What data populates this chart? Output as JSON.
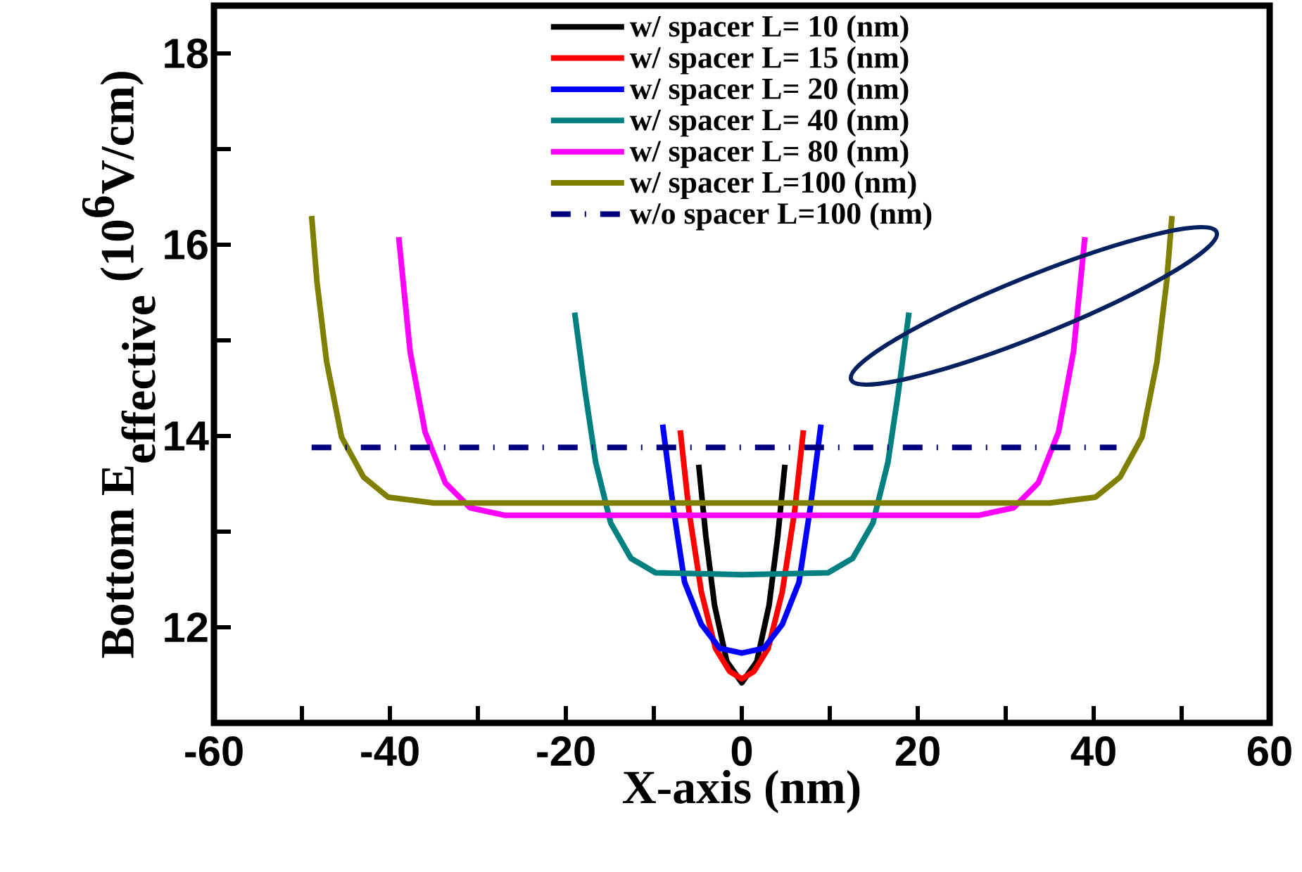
{
  "chart_data": {
    "type": "line",
    "xlabel": "X-axis (nm)",
    "ylabel": "\\textbf{Bottom E}_{\\textbf{effective}}\\textbf{ (10}^{\\textbf{6}}\\textbf{V/cm)}",
    "xlim": [
      -60,
      60
    ],
    "ylim": [
      11,
      18.5
    ],
    "xticks": [
      -60,
      {
        "value": -50,
        "label": null
      },
      -40,
      {
        "value": -30,
        "label": null
      },
      -20,
      {
        "value": -10,
        "label": null
      },
      0,
      {
        "value": 10,
        "label": null
      },
      20,
      {
        "value": 30,
        "label": null
      },
      40,
      {
        "value": 50,
        "label": null
      },
      60
    ],
    "yticks": [
      12,
      {
        "value": 13,
        "label": null
      },
      14,
      {
        "value": 15,
        "label": null
      },
      16,
      {
        "value": 17,
        "label": null
      },
      18
    ],
    "legend": "top",
    "grid": false,
    "marker": "none",
    "line_style": "solid",
    "series": [
      {
        "name": "w/ spacer L= 10 (nm)",
        "color": "#000000",
        "x": [
          -4.9,
          -4.1,
          -3.1,
          -1.7,
          0,
          1.7,
          3.1,
          4.1,
          4.9
        ],
        "values": [
          13.7,
          12.96,
          12.23,
          11.64,
          11.42,
          11.64,
          12.23,
          12.96,
          13.7
        ]
      },
      {
        "name": "w/ spacer L= 15 (nm)",
        "color": "#ff0000",
        "x": [
          -7.0,
          -6.0,
          -4.6,
          -3.0,
          -1.4,
          0,
          1.4,
          3.0,
          4.6,
          6.0,
          7.0
        ],
        "values": [
          14.06,
          13.21,
          12.37,
          11.78,
          11.54,
          11.46,
          11.54,
          11.78,
          12.37,
          13.21,
          14.06
        ]
      },
      {
        "name": "w/ spacer L= 20 (nm)",
        "color": "#0000ff",
        "x": [
          -9.0,
          -7.8,
          -6.5,
          -4.6,
          -2.5,
          0,
          2.5,
          4.6,
          6.5,
          7.8,
          9.0
        ],
        "values": [
          14.12,
          13.26,
          12.47,
          12.03,
          11.78,
          11.73,
          11.78,
          12.03,
          12.47,
          13.26,
          14.12
        ]
      },
      {
        "name": "w/ spacer L= 40 (nm)",
        "color": "#008080",
        "x": [
          -19.0,
          -17.8,
          -16.6,
          -14.9,
          -12.6,
          -9.8,
          0,
          9.8,
          12.6,
          14.9,
          16.6,
          17.8,
          19.0
        ],
        "values": [
          15.29,
          14.46,
          13.72,
          13.09,
          12.72,
          12.57,
          12.55,
          12.57,
          12.72,
          13.09,
          13.72,
          14.46,
          15.29
        ]
      },
      {
        "name": "w/ spacer L= 80 (nm)",
        "color": "#ff00ff",
        "x": [
          -39.0,
          -37.7,
          -36.0,
          -33.7,
          -30.9,
          -26.9,
          0,
          26.9,
          30.9,
          33.7,
          36.0,
          37.7,
          39.0
        ],
        "values": [
          16.08,
          14.88,
          14.04,
          13.51,
          13.25,
          13.17,
          13.17,
          13.17,
          13.25,
          13.51,
          14.04,
          14.88,
          16.08
        ]
      },
      {
        "name": "w/ spacer L=100 (nm)",
        "color": "#808000",
        "x": [
          -48.9,
          -48.3,
          -47.2,
          -45.5,
          -43.0,
          -40.2,
          -35.0,
          0,
          35.0,
          40.2,
          43.0,
          45.5,
          47.2,
          48.3,
          48.9
        ],
        "values": [
          16.3,
          15.62,
          14.78,
          13.99,
          13.57,
          13.36,
          13.3,
          13.3,
          13.3,
          13.36,
          13.57,
          13.99,
          14.78,
          15.62,
          16.3
        ]
      },
      {
        "name": "w/o spacer L=100 (nm)",
        "color": "#000080",
        "line_style": "dashed",
        "x": [
          -48.9,
          42.6
        ],
        "values": [
          13.88,
          13.88
        ]
      }
    ]
  }
}
